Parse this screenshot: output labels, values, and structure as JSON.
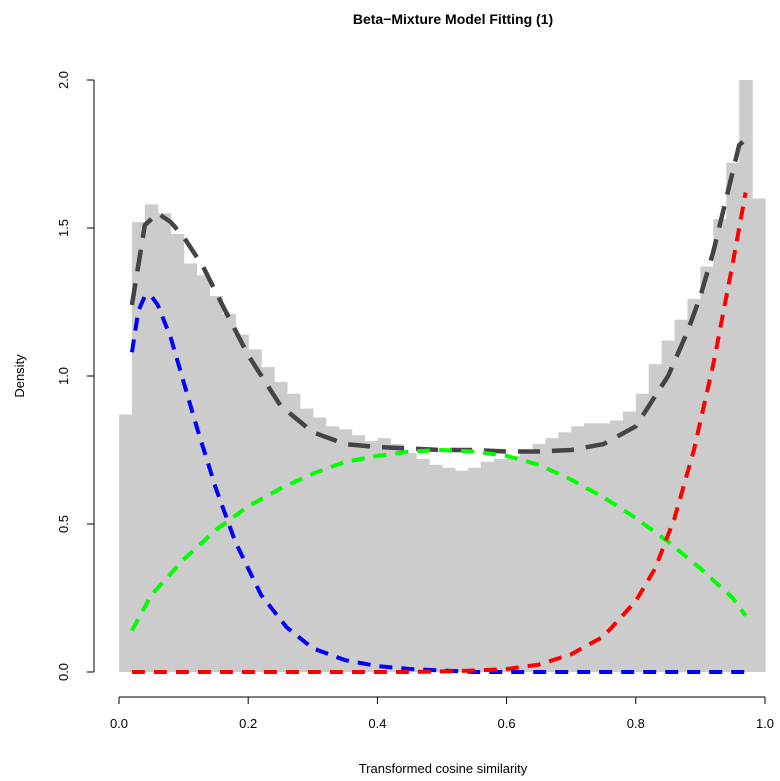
{
  "chart_data": {
    "type": "histogram",
    "title": "Beta−Mixture Model Fitting (1)",
    "xlabel": "Transformed cosine similarity",
    "ylabel": "Density",
    "xlim": [
      0.0,
      1.0
    ],
    "ylim": [
      0.0,
      2.0
    ],
    "xticks": [
      {
        "value": 0.0,
        "label": "0.0"
      },
      {
        "value": 0.2,
        "label": "0.2"
      },
      {
        "value": 0.4,
        "label": "0.4"
      },
      {
        "value": 0.6,
        "label": "0.6"
      },
      {
        "value": 0.8,
        "label": "0.8"
      },
      {
        "value": 1.0,
        "label": "1.0"
      }
    ],
    "yticks": [
      {
        "value": 0.0,
        "label": "0.0"
      },
      {
        "value": 0.5,
        "label": "0.5"
      },
      {
        "value": 1.0,
        "label": "1.0"
      },
      {
        "value": 1.5,
        "label": "1.5"
      },
      {
        "value": 2.0,
        "label": "2.0"
      }
    ],
    "grid": false,
    "legend": "none",
    "histogram": {
      "bin_width": 0.02,
      "x_start": 0.0,
      "color": "#cccccc",
      "densities": [
        0.87,
        1.52,
        1.58,
        1.55,
        1.48,
        1.38,
        1.34,
        1.27,
        1.21,
        1.14,
        1.09,
        1.03,
        0.98,
        0.94,
        0.89,
        0.86,
        0.83,
        0.82,
        0.8,
        0.78,
        0.79,
        0.77,
        0.74,
        0.72,
        0.7,
        0.69,
        0.68,
        0.69,
        0.71,
        0.72,
        0.73,
        0.75,
        0.77,
        0.79,
        0.81,
        0.83,
        0.84,
        0.84,
        0.85,
        0.88,
        0.94,
        1.04,
        1.12,
        1.19,
        1.26,
        1.37,
        1.53,
        1.72,
        2.0,
        1.6
      ]
    },
    "series": [
      {
        "color": "#444444",
        "dash": "long",
        "x": [
          0.02,
          0.04,
          0.06,
          0.08,
          0.1,
          0.13,
          0.16,
          0.2,
          0.25,
          0.3,
          0.35,
          0.4,
          0.45,
          0.5,
          0.55,
          0.6,
          0.65,
          0.7,
          0.75,
          0.8,
          0.85,
          0.88,
          0.9,
          0.92,
          0.94,
          0.96,
          0.97
        ],
        "y": [
          1.24,
          1.51,
          1.55,
          1.52,
          1.47,
          1.37,
          1.24,
          1.07,
          0.9,
          0.81,
          0.77,
          0.76,
          0.755,
          0.75,
          0.75,
          0.745,
          0.745,
          0.75,
          0.77,
          0.83,
          1.0,
          1.15,
          1.27,
          1.42,
          1.6,
          1.78,
          1.8
        ]
      },
      {
        "color": "#0000ff",
        "dash": "short",
        "x": [
          0.02,
          0.03,
          0.04,
          0.05,
          0.06,
          0.08,
          0.1,
          0.12,
          0.15,
          0.18,
          0.22,
          0.26,
          0.3,
          0.35,
          0.4,
          0.45,
          0.5,
          0.55,
          0.6,
          0.7,
          0.8,
          0.9,
          0.97
        ],
        "y": [
          1.08,
          1.22,
          1.27,
          1.27,
          1.24,
          1.13,
          0.98,
          0.83,
          0.62,
          0.44,
          0.26,
          0.15,
          0.08,
          0.04,
          0.02,
          0.01,
          0.005,
          0.0,
          0.0,
          0.0,
          0.0,
          0.0,
          0.0
        ]
      },
      {
        "color": "#00ff00",
        "dash": "short",
        "x": [
          0.02,
          0.05,
          0.1,
          0.15,
          0.2,
          0.25,
          0.3,
          0.35,
          0.4,
          0.45,
          0.5,
          0.55,
          0.6,
          0.65,
          0.7,
          0.75,
          0.8,
          0.85,
          0.9,
          0.95,
          0.97
        ],
        "y": [
          0.14,
          0.26,
          0.38,
          0.48,
          0.56,
          0.62,
          0.67,
          0.71,
          0.73,
          0.745,
          0.75,
          0.745,
          0.73,
          0.7,
          0.65,
          0.59,
          0.52,
          0.44,
          0.35,
          0.25,
          0.19
        ]
      },
      {
        "color": "#ff0000",
        "dash": "short",
        "x": [
          0.02,
          0.3,
          0.45,
          0.5,
          0.55,
          0.6,
          0.65,
          0.7,
          0.75,
          0.8,
          0.83,
          0.86,
          0.89,
          0.92,
          0.95,
          0.97
        ],
        "y": [
          0.0,
          0.0,
          0.0,
          0.002,
          0.005,
          0.01,
          0.025,
          0.06,
          0.12,
          0.24,
          0.35,
          0.52,
          0.75,
          1.04,
          1.38,
          1.62
        ]
      }
    ]
  }
}
